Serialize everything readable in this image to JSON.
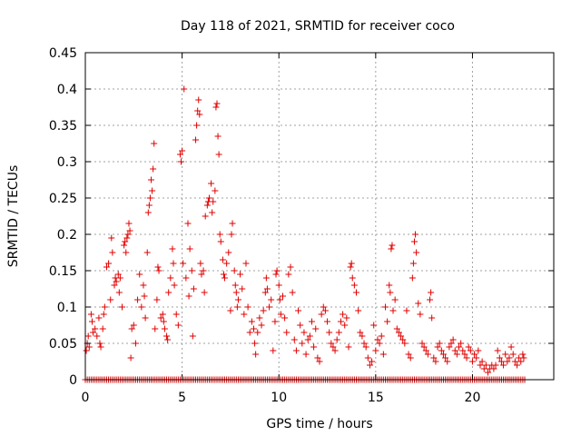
{
  "chart_data": {
    "type": "scatter",
    "title": "Day 118 of 2021, SRMTID for receiver coco",
    "xlabel": "GPS time / hours",
    "ylabel": "SRMTID / TECUs",
    "xlim": [
      0,
      24.2
    ],
    "ylim": [
      0,
      0.45
    ],
    "xticks": [
      0,
      5,
      10,
      15,
      20
    ],
    "xtick_labels": [
      "0",
      "5",
      "10",
      "15",
      "20"
    ],
    "yticks": [
      0,
      0.05,
      0.1,
      0.15,
      0.2,
      0.25,
      0.3,
      0.35,
      0.4,
      0.45
    ],
    "ytick_labels": [
      "0",
      "0.05",
      "0.1",
      "0.15",
      "0.2",
      "0.25",
      "0.3",
      "0.35",
      "0.4",
      "0.45"
    ],
    "grid": true,
    "marker": "plus",
    "color": "#e00000",
    "series": [
      {
        "name": "SRMTID",
        "points": [
          [
            0.05,
            0.04
          ],
          [
            0.1,
            0.05
          ],
          [
            0.15,
            0.06
          ],
          [
            0.2,
            0.045
          ],
          [
            0.3,
            0.09
          ],
          [
            0.35,
            0.08
          ],
          [
            0.4,
            0.065
          ],
          [
            0.5,
            0.07
          ],
          [
            0.6,
            0.06
          ],
          [
            0.7,
            0.085
          ],
          [
            0.75,
            0.05
          ],
          [
            0.8,
            0.045
          ],
          [
            0.9,
            0.07
          ],
          [
            0.95,
            0.09
          ],
          [
            1.0,
            0.1
          ],
          [
            1.1,
            0.155
          ],
          [
            1.2,
            0.16
          ],
          [
            1.3,
            0.11
          ],
          [
            1.35,
            0.195
          ],
          [
            1.4,
            0.175
          ],
          [
            1.5,
            0.13
          ],
          [
            1.55,
            0.14
          ],
          [
            1.6,
            0.135
          ],
          [
            1.7,
            0.145
          ],
          [
            1.75,
            0.12
          ],
          [
            1.8,
            0.14
          ],
          [
            1.9,
            0.1
          ],
          [
            2.0,
            0.185
          ],
          [
            2.05,
            0.19
          ],
          [
            2.1,
            0.175
          ],
          [
            2.15,
            0.195
          ],
          [
            2.2,
            0.2
          ],
          [
            2.25,
            0.215
          ],
          [
            2.3,
            0.205
          ],
          [
            2.35,
            0.03
          ],
          [
            2.4,
            0.07
          ],
          [
            2.5,
            0.075
          ],
          [
            2.6,
            0.05
          ],
          [
            2.7,
            0.11
          ],
          [
            2.8,
            0.145
          ],
          [
            2.9,
            0.1
          ],
          [
            3.0,
            0.13
          ],
          [
            3.05,
            0.115
          ],
          [
            3.1,
            0.085
          ],
          [
            3.2,
            0.175
          ],
          [
            3.25,
            0.23
          ],
          [
            3.3,
            0.24
          ],
          [
            3.35,
            0.25
          ],
          [
            3.4,
            0.275
          ],
          [
            3.45,
            0.26
          ],
          [
            3.5,
            0.29
          ],
          [
            3.55,
            0.325
          ],
          [
            3.6,
            0.07
          ],
          [
            3.7,
            0.11
          ],
          [
            3.75,
            0.155
          ],
          [
            3.8,
            0.15
          ],
          [
            3.9,
            0.085
          ],
          [
            4.0,
            0.09
          ],
          [
            4.05,
            0.08
          ],
          [
            4.1,
            0.07
          ],
          [
            4.2,
            0.06
          ],
          [
            4.25,
            0.055
          ],
          [
            4.3,
            0.12
          ],
          [
            4.4,
            0.14
          ],
          [
            4.5,
            0.18
          ],
          [
            4.55,
            0.16
          ],
          [
            4.6,
            0.13
          ],
          [
            4.7,
            0.09
          ],
          [
            4.8,
            0.075
          ],
          [
            4.9,
            0.31
          ],
          [
            4.95,
            0.3
          ],
          [
            5.0,
            0.315
          ],
          [
            5.05,
            0.16
          ],
          [
            5.1,
            0.4
          ],
          [
            5.2,
            0.14
          ],
          [
            5.3,
            0.215
          ],
          [
            5.35,
            0.115
          ],
          [
            5.4,
            0.18
          ],
          [
            5.5,
            0.15
          ],
          [
            5.55,
            0.06
          ],
          [
            5.6,
            0.125
          ],
          [
            5.7,
            0.33
          ],
          [
            5.75,
            0.35
          ],
          [
            5.8,
            0.37
          ],
          [
            5.85,
            0.385
          ],
          [
            5.9,
            0.365
          ],
          [
            5.95,
            0.16
          ],
          [
            6.0,
            0.145
          ],
          [
            6.1,
            0.15
          ],
          [
            6.15,
            0.12
          ],
          [
            6.2,
            0.225
          ],
          [
            6.3,
            0.24
          ],
          [
            6.35,
            0.245
          ],
          [
            6.4,
            0.25
          ],
          [
            6.5,
            0.27
          ],
          [
            6.55,
            0.23
          ],
          [
            6.6,
            0.245
          ],
          [
            6.7,
            0.26
          ],
          [
            6.75,
            0.375
          ],
          [
            6.8,
            0.38
          ],
          [
            6.85,
            0.335
          ],
          [
            6.9,
            0.31
          ],
          [
            6.95,
            0.2
          ],
          [
            7.0,
            0.19
          ],
          [
            7.1,
            0.165
          ],
          [
            7.15,
            0.145
          ],
          [
            7.2,
            0.14
          ],
          [
            7.3,
            0.16
          ],
          [
            7.4,
            0.175
          ],
          [
            7.5,
            0.095
          ],
          [
            7.55,
            0.2
          ],
          [
            7.6,
            0.215
          ],
          [
            7.7,
            0.15
          ],
          [
            7.75,
            0.13
          ],
          [
            7.8,
            0.12
          ],
          [
            7.85,
            0.1
          ],
          [
            7.9,
            0.11
          ],
          [
            8.0,
            0.145
          ],
          [
            8.1,
            0.125
          ],
          [
            8.2,
            0.09
          ],
          [
            8.3,
            0.16
          ],
          [
            8.4,
            0.1
          ],
          [
            8.5,
            0.065
          ],
          [
            8.6,
            0.08
          ],
          [
            8.7,
            0.07
          ],
          [
            8.75,
            0.05
          ],
          [
            8.8,
            0.035
          ],
          [
            8.9,
            0.065
          ],
          [
            9.0,
            0.085
          ],
          [
            9.1,
            0.075
          ],
          [
            9.2,
            0.095
          ],
          [
            9.3,
            0.12
          ],
          [
            9.35,
            0.14
          ],
          [
            9.4,
            0.125
          ],
          [
            9.5,
            0.1
          ],
          [
            9.6,
            0.11
          ],
          [
            9.7,
            0.04
          ],
          [
            9.8,
            0.08
          ],
          [
            9.85,
            0.145
          ],
          [
            9.9,
            0.15
          ],
          [
            10.0,
            0.13
          ],
          [
            10.05,
            0.11
          ],
          [
            10.1,
            0.09
          ],
          [
            10.2,
            0.115
          ],
          [
            10.3,
            0.085
          ],
          [
            10.4,
            0.065
          ],
          [
            10.5,
            0.145
          ],
          [
            10.6,
            0.155
          ],
          [
            10.7,
            0.12
          ],
          [
            10.8,
            0.055
          ],
          [
            10.9,
            0.04
          ],
          [
            11.0,
            0.095
          ],
          [
            11.1,
            0.075
          ],
          [
            11.2,
            0.05
          ],
          [
            11.3,
            0.065
          ],
          [
            11.4,
            0.035
          ],
          [
            11.5,
            0.055
          ],
          [
            11.6,
            0.06
          ],
          [
            11.7,
            0.08
          ],
          [
            11.8,
            0.045
          ],
          [
            11.9,
            0.07
          ],
          [
            12.0,
            0.03
          ],
          [
            12.1,
            0.025
          ],
          [
            12.2,
            0.09
          ],
          [
            12.3,
            0.1
          ],
          [
            12.4,
            0.095
          ],
          [
            12.5,
            0.08
          ],
          [
            12.6,
            0.065
          ],
          [
            12.7,
            0.05
          ],
          [
            12.8,
            0.045
          ],
          [
            12.9,
            0.04
          ],
          [
            13.0,
            0.055
          ],
          [
            13.1,
            0.065
          ],
          [
            13.2,
            0.08
          ],
          [
            13.3,
            0.09
          ],
          [
            13.4,
            0.075
          ],
          [
            13.5,
            0.085
          ],
          [
            13.6,
            0.045
          ],
          [
            13.7,
            0.155
          ],
          [
            13.75,
            0.16
          ],
          [
            13.8,
            0.14
          ],
          [
            13.9,
            0.13
          ],
          [
            14.0,
            0.12
          ],
          [
            14.1,
            0.095
          ],
          [
            14.2,
            0.065
          ],
          [
            14.3,
            0.06
          ],
          [
            14.4,
            0.05
          ],
          [
            14.5,
            0.045
          ],
          [
            14.6,
            0.03
          ],
          [
            14.7,
            0.02
          ],
          [
            14.8,
            0.025
          ],
          [
            14.9,
            0.075
          ],
          [
            15.0,
            0.04
          ],
          [
            15.1,
            0.055
          ],
          [
            15.2,
            0.05
          ],
          [
            15.3,
            0.06
          ],
          [
            15.4,
            0.035
          ],
          [
            15.5,
            0.1
          ],
          [
            15.6,
            0.08
          ],
          [
            15.7,
            0.13
          ],
          [
            15.75,
            0.12
          ],
          [
            15.8,
            0.18
          ],
          [
            15.85,
            0.185
          ],
          [
            15.9,
            0.095
          ],
          [
            16.0,
            0.11
          ],
          [
            16.1,
            0.07
          ],
          [
            16.2,
            0.065
          ],
          [
            16.3,
            0.06
          ],
          [
            16.4,
            0.055
          ],
          [
            16.5,
            0.05
          ],
          [
            16.6,
            0.095
          ],
          [
            16.7,
            0.035
          ],
          [
            16.8,
            0.03
          ],
          [
            16.9,
            0.14
          ],
          [
            16.95,
            0.16
          ],
          [
            17.0,
            0.19
          ],
          [
            17.05,
            0.2
          ],
          [
            17.1,
            0.175
          ],
          [
            17.2,
            0.105
          ],
          [
            17.3,
            0.09
          ],
          [
            17.4,
            0.05
          ],
          [
            17.5,
            0.045
          ],
          [
            17.6,
            0.04
          ],
          [
            17.7,
            0.035
          ],
          [
            17.8,
            0.11
          ],
          [
            17.85,
            0.12
          ],
          [
            17.9,
            0.085
          ],
          [
            18.0,
            0.03
          ],
          [
            18.1,
            0.025
          ],
          [
            18.2,
            0.045
          ],
          [
            18.3,
            0.05
          ],
          [
            18.4,
            0.04
          ],
          [
            18.5,
            0.035
          ],
          [
            18.6,
            0.03
          ],
          [
            18.7,
            0.025
          ],
          [
            18.8,
            0.045
          ],
          [
            18.9,
            0.05
          ],
          [
            19.0,
            0.055
          ],
          [
            19.1,
            0.04
          ],
          [
            19.2,
            0.035
          ],
          [
            19.3,
            0.045
          ],
          [
            19.4,
            0.05
          ],
          [
            19.5,
            0.04
          ],
          [
            19.6,
            0.035
          ],
          [
            19.7,
            0.03
          ],
          [
            19.8,
            0.045
          ],
          [
            19.9,
            0.04
          ],
          [
            20.0,
            0.025
          ],
          [
            20.1,
            0.035
          ],
          [
            20.2,
            0.03
          ],
          [
            20.3,
            0.04
          ],
          [
            20.4,
            0.02
          ],
          [
            20.5,
            0.025
          ],
          [
            20.6,
            0.015
          ],
          [
            20.7,
            0.02
          ],
          [
            20.8,
            0.01
          ],
          [
            20.9,
            0.015
          ],
          [
            21.0,
            0.02
          ],
          [
            21.1,
            0.015
          ],
          [
            21.2,
            0.02
          ],
          [
            21.3,
            0.04
          ],
          [
            21.4,
            0.03
          ],
          [
            21.5,
            0.025
          ],
          [
            21.6,
            0.02
          ],
          [
            21.7,
            0.035
          ],
          [
            21.8,
            0.025
          ],
          [
            21.9,
            0.03
          ],
          [
            22.0,
            0.045
          ],
          [
            22.1,
            0.035
          ],
          [
            22.2,
            0.025
          ],
          [
            22.3,
            0.02
          ],
          [
            22.4,
            0.03
          ],
          [
            22.5,
            0.025
          ],
          [
            22.6,
            0.035
          ],
          [
            22.65,
            0.03
          ]
        ]
      },
      {
        "name": "baseline",
        "x_start": 0,
        "x_end": 22.7,
        "x_step": 0.1,
        "value": 0
      }
    ]
  }
}
